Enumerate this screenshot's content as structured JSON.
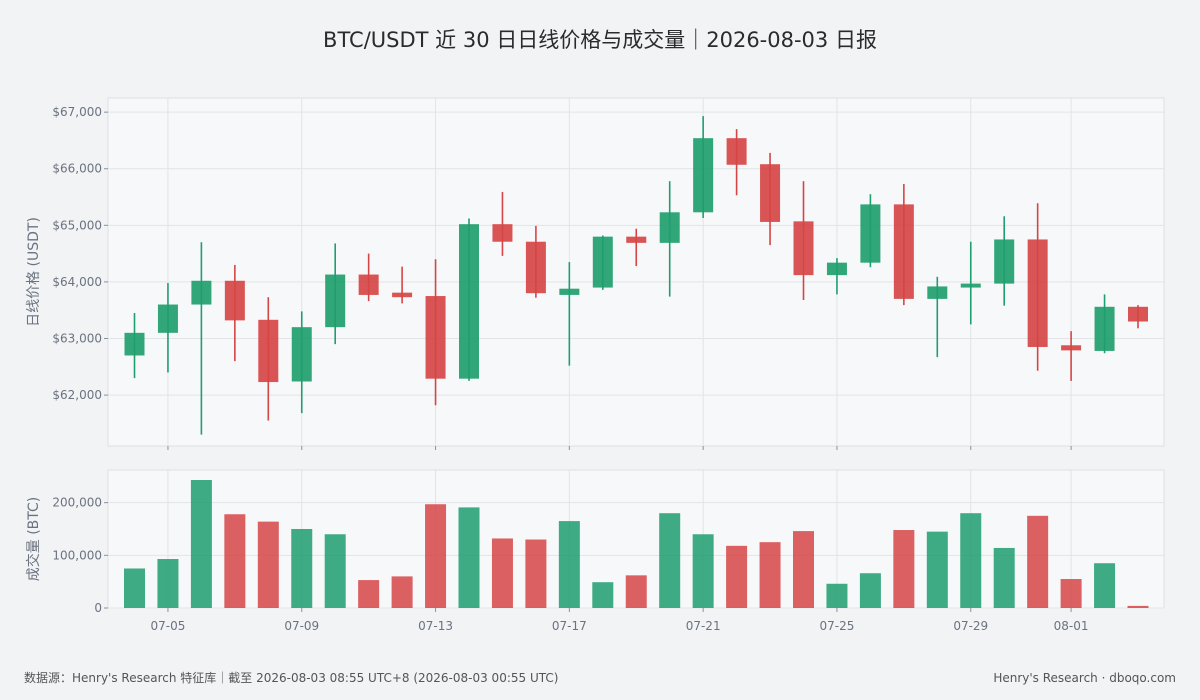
{
  "chart_data": {
    "type": "candlestick",
    "title": "BTC/USDT 近 30 日日线价格与成交量｜2026-08-03 日报",
    "price_panel": {
      "ylabel": "日线价格 (USDT)",
      "ylim": [
        61100,
        67250
      ],
      "yticks": [
        62000,
        63000,
        64000,
        65000,
        66000,
        67000
      ],
      "ytick_labels": [
        "$62,000",
        "$63,000",
        "$64,000",
        "$65,000",
        "$66,000",
        "$67,000"
      ]
    },
    "volume_panel": {
      "ylabel": "成交量 (BTC)",
      "ylim": [
        0,
        262000
      ],
      "yticks": [
        0,
        100000,
        200000
      ],
      "ytick_labels": [
        "0",
        "100,000",
        "200,000"
      ]
    },
    "xtick_labels": [
      {
        "index": 1,
        "label": "07-05"
      },
      {
        "index": 5,
        "label": "07-09"
      },
      {
        "index": 9,
        "label": "07-13"
      },
      {
        "index": 13,
        "label": "07-17"
      },
      {
        "index": 17,
        "label": "07-21"
      },
      {
        "index": 21,
        "label": "07-25"
      },
      {
        "index": 25,
        "label": "07-29"
      },
      {
        "index": 28,
        "label": "08-01"
      }
    ],
    "candles": [
      {
        "date": "07-04",
        "open": 62700,
        "high": 63450,
        "low": 62300,
        "close": 63100,
        "volume": 75000
      },
      {
        "date": "07-05",
        "open": 63100,
        "high": 63980,
        "low": 62400,
        "close": 63600,
        "volume": 93000
      },
      {
        "date": "07-06",
        "open": 63600,
        "high": 64700,
        "low": 61300,
        "close": 64020,
        "volume": 243000
      },
      {
        "date": "07-07",
        "open": 64020,
        "high": 64300,
        "low": 62600,
        "close": 63320,
        "volume": 178000
      },
      {
        "date": "07-08",
        "open": 63330,
        "high": 63730,
        "low": 61550,
        "close": 62230,
        "volume": 164000
      },
      {
        "date": "07-09",
        "open": 62240,
        "high": 63480,
        "low": 61680,
        "close": 63200,
        "volume": 150000
      },
      {
        "date": "07-10",
        "open": 63200,
        "high": 64680,
        "low": 62900,
        "close": 64130,
        "volume": 140000
      },
      {
        "date": "07-11",
        "open": 64130,
        "high": 64500,
        "low": 63660,
        "close": 63770,
        "volume": 53000
      },
      {
        "date": "07-12",
        "open": 63810,
        "high": 64270,
        "low": 63620,
        "close": 63730,
        "volume": 60000
      },
      {
        "date": "07-13",
        "open": 63750,
        "high": 64400,
        "low": 61820,
        "close": 62290,
        "volume": 197000
      },
      {
        "date": "07-14",
        "open": 62290,
        "high": 65120,
        "low": 62250,
        "close": 65020,
        "volume": 191000
      },
      {
        "date": "07-15",
        "open": 65020,
        "high": 65590,
        "low": 64460,
        "close": 64710,
        "volume": 132000
      },
      {
        "date": "07-16",
        "open": 64710,
        "high": 64990,
        "low": 63720,
        "close": 63800,
        "volume": 130000
      },
      {
        "date": "07-17",
        "open": 63770,
        "high": 64350,
        "low": 62520,
        "close": 63880,
        "volume": 165000
      },
      {
        "date": "07-18",
        "open": 63900,
        "high": 64820,
        "low": 63860,
        "close": 64800,
        "volume": 49000
      },
      {
        "date": "07-19",
        "open": 64800,
        "high": 64940,
        "low": 64280,
        "close": 64690,
        "volume": 62000
      },
      {
        "date": "07-20",
        "open": 64690,
        "high": 65780,
        "low": 63740,
        "close": 65230,
        "volume": 180000
      },
      {
        "date": "07-21",
        "open": 65230,
        "high": 66930,
        "low": 65130,
        "close": 66540,
        "volume": 140000
      },
      {
        "date": "07-22",
        "open": 66540,
        "high": 66700,
        "low": 65530,
        "close": 66070,
        "volume": 118000
      },
      {
        "date": "07-23",
        "open": 66080,
        "high": 66280,
        "low": 64650,
        "close": 65060,
        "volume": 125000
      },
      {
        "date": "07-24",
        "open": 65070,
        "high": 65780,
        "low": 63680,
        "close": 64120,
        "volume": 146000
      },
      {
        "date": "07-25",
        "open": 64120,
        "high": 64420,
        "low": 63780,
        "close": 64340,
        "volume": 46000
      },
      {
        "date": "07-26",
        "open": 64340,
        "high": 65550,
        "low": 64260,
        "close": 65370,
        "volume": 66000
      },
      {
        "date": "07-27",
        "open": 65370,
        "high": 65730,
        "low": 63590,
        "close": 63700,
        "volume": 148000
      },
      {
        "date": "07-28",
        "open": 63700,
        "high": 64090,
        "low": 62670,
        "close": 63920,
        "volume": 145000
      },
      {
        "date": "07-29",
        "open": 63900,
        "high": 64710,
        "low": 63250,
        "close": 63970,
        "volume": 180000
      },
      {
        "date": "07-30",
        "open": 63970,
        "high": 65160,
        "low": 63580,
        "close": 64750,
        "volume": 114000
      },
      {
        "date": "07-31",
        "open": 64750,
        "high": 65390,
        "low": 62430,
        "close": 62850,
        "volume": 175000
      },
      {
        "date": "08-01",
        "open": 62880,
        "high": 63130,
        "low": 62250,
        "close": 62790,
        "volume": 55000
      },
      {
        "date": "08-02",
        "open": 62780,
        "high": 63780,
        "low": 62740,
        "close": 63560,
        "volume": 85000
      },
      {
        "date": "08-03",
        "open": 63560,
        "high": 63590,
        "low": 63180,
        "close": 63300,
        "volume": 4000
      }
    ],
    "colors": {
      "up": "#1f9e6e",
      "down": "#d64545"
    },
    "grid": true
  },
  "footer": {
    "source": "数据源：Henry's Research 特征库｜截至 2026-08-03 08:55 UTC+8 (2026-08-03 00:55 UTC)",
    "brand": "Henry's Research · dboqo.com"
  }
}
